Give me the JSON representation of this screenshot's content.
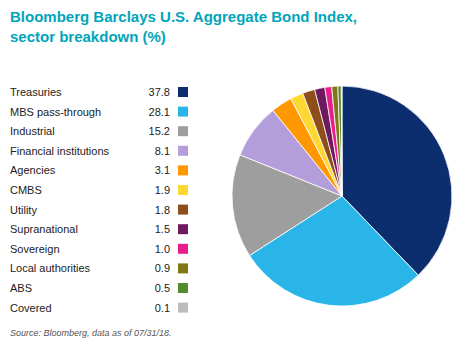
{
  "chart_data": {
    "type": "pie",
    "title": "Bloomberg Barclays U.S. Aggregate Bond Index,",
    "subtitle": "sector breakdown (%)",
    "annotations": [
      "Source: Bloomberg, data as of 07/31/18."
    ],
    "categories": [
      "Treasuries",
      "MBS pass-through",
      "Industrial",
      "Financial institutions",
      "Agencies",
      "CMBS",
      "Utility",
      "Supranational",
      "Sovereign",
      "Local authorities",
      "ABS",
      "Covered"
    ],
    "values": [
      37.8,
      28.1,
      15.2,
      8.1,
      3.1,
      1.9,
      1.8,
      1.5,
      1.0,
      0.9,
      0.5,
      0.1
    ],
    "value_labels": [
      "37.8",
      "28.1",
      "15.2",
      "8.1",
      "3.1",
      "1.9",
      "1.8",
      "1.5",
      "1.0",
      "0.9",
      "0.5",
      "0.1"
    ],
    "colors": [
      "#0d2e6e",
      "#29b5e8",
      "#9e9e9e",
      "#b39ddb",
      "#ff9800",
      "#fdd835",
      "#8d4e1a",
      "#6d1a5e",
      "#e91e8c",
      "#827717",
      "#558b2f",
      "#bdbdbd"
    ],
    "legend": "left"
  }
}
